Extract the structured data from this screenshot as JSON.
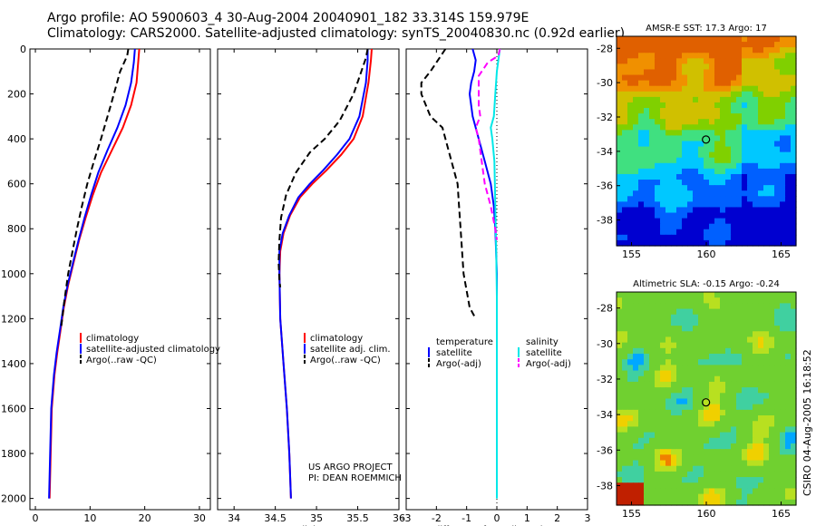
{
  "header": {
    "line1": "Argo profile: AO 5900603_4 30-Aug-2004 20040901_182 33.314S 159.979E",
    "line2": "Climatology: CARS2000. Satellite-adjusted climatology: synTS_20040830.nc (0.92d earlier)"
  },
  "side_label": "CSIRO 04-Aug-2005 16:18:52",
  "credit": {
    "line1": "US ARGO PROJECT",
    "line2": "PI: DEAN ROEMMICH"
  },
  "colors": {
    "climatology": "#ff0000",
    "satellite": "#0000ff",
    "argo": "#000000",
    "salinity_sat": "#00e8e8",
    "salinity_argo": "#ff00ff"
  },
  "chart_data": [
    {
      "type": "line",
      "xlabel": "temperature",
      "ylabel": "",
      "xlim": [
        -1,
        32
      ],
      "ylim": [
        2050,
        0
      ],
      "xticks": [
        0,
        10,
        20,
        30
      ],
      "yticks": [
        0,
        200,
        400,
        600,
        800,
        1000,
        1200,
        1400,
        1600,
        1800,
        2000
      ],
      "legend": {
        "placement": "lower-right",
        "entries": [
          "climatology",
          "satellite-adjusted climatology",
          "Argo(..raw -QC)"
        ]
      },
      "series": [
        {
          "name": "climatology",
          "color": "#ff0000",
          "dash": "solid",
          "x": [
            19.0,
            18.8,
            18.5,
            17.5,
            16.0,
            14.0,
            12.0,
            10.5,
            9.2,
            8.0,
            7.0,
            6.0,
            5.2,
            4.6,
            4.0,
            3.5,
            3.0,
            2.8,
            2.6
          ],
          "y": [
            0,
            60,
            150,
            250,
            350,
            450,
            550,
            650,
            750,
            850,
            950,
            1050,
            1150,
            1250,
            1350,
            1450,
            1600,
            1800,
            2000
          ]
        },
        {
          "name": "satellite-adjusted climatology",
          "color": "#0000ff",
          "dash": "solid",
          "x": [
            18.2,
            18.0,
            17.5,
            16.5,
            15.0,
            13.2,
            11.5,
            10.2,
            9.0,
            7.9,
            6.9,
            5.9,
            5.1,
            4.5,
            3.9,
            3.4,
            2.9,
            2.7,
            2.5
          ],
          "y": [
            0,
            60,
            150,
            250,
            350,
            450,
            550,
            650,
            750,
            850,
            950,
            1050,
            1150,
            1250,
            1350,
            1450,
            1600,
            1800,
            2000
          ]
        },
        {
          "name": "Argo(..raw -QC)",
          "color": "#000000",
          "dash": "dashed",
          "x": [
            17.0,
            16.8,
            15.5,
            13.8,
            12.0,
            10.7,
            9.5,
            8.5,
            7.6,
            6.8,
            6.0,
            5.3,
            4.7
          ],
          "y": [
            0,
            30,
            100,
            250,
            400,
            500,
            600,
            700,
            800,
            900,
            1000,
            1120,
            1240
          ]
        }
      ]
    },
    {
      "type": "line",
      "xlabel": "salinity",
      "ylabel": "",
      "xlim": [
        33.8,
        36.0
      ],
      "ylim": [
        2050,
        0
      ],
      "xticks": [
        34,
        34.5,
        35,
        35.5,
        36
      ],
      "legend": {
        "placement": "lower-right",
        "entries": [
          "climatology",
          "satellite adj. clim.",
          "Argo(..raw -QC)"
        ]
      },
      "series": [
        {
          "name": "climatology",
          "color": "#ff0000",
          "dash": "solid",
          "x": [
            35.67,
            35.66,
            35.63,
            35.56,
            35.45,
            35.3,
            35.12,
            34.95,
            34.8,
            34.68,
            34.6,
            34.56,
            34.55,
            34.56,
            34.6,
            34.64,
            34.67,
            34.69
          ],
          "y": [
            0,
            50,
            150,
            300,
            400,
            470,
            540,
            600,
            660,
            740,
            820,
            900,
            1000,
            1200,
            1400,
            1600,
            1800,
            2000
          ]
        },
        {
          "name": "satellite adj. clim.",
          "color": "#0000ff",
          "dash": "solid",
          "x": [
            35.62,
            35.62,
            35.6,
            35.52,
            35.4,
            35.25,
            35.08,
            34.92,
            34.78,
            34.67,
            34.59,
            34.55,
            34.55,
            34.56,
            34.6,
            34.64,
            34.67,
            34.69
          ],
          "y": [
            0,
            50,
            150,
            300,
            400,
            470,
            540,
            600,
            660,
            740,
            820,
            900,
            1000,
            1200,
            1400,
            1600,
            1800,
            2000
          ]
        },
        {
          "name": "Argo(..raw -QC)",
          "color": "#000000",
          "dash": "dashed",
          "x": [
            35.62,
            35.6,
            35.45,
            35.28,
            35.1,
            34.92,
            34.75,
            34.63,
            34.57,
            34.55,
            34.54,
            34.55,
            34.56
          ],
          "y": [
            0,
            40,
            200,
            320,
            400,
            460,
            550,
            650,
            750,
            850,
            950,
            1030,
            1060
          ]
        }
      ]
    },
    {
      "type": "line",
      "xlabel": "difference from climatology",
      "ylabel": "",
      "xlim": [
        -3,
        3
      ],
      "ylim": [
        2050,
        0
      ],
      "xticks": [
        -3,
        -2,
        -1,
        0,
        1,
        2,
        3
      ],
      "legend": {
        "placement": "lower-center",
        "groups": [
          {
            "title": "temperature",
            "entries": [
              "satellite",
              "Argo(-adj)"
            ]
          },
          {
            "title": "salinity",
            "entries": [
              "satellite",
              "Argo(-adj)"
            ]
          }
        ]
      },
      "series": [
        {
          "name": "satellite",
          "group": "temperature",
          "color": "#0000ff",
          "dash": "solid",
          "x": [
            -0.8,
            -0.7,
            -0.75,
            -0.85,
            -0.9,
            -0.8,
            -0.6,
            -0.4,
            -0.2,
            -0.1,
            -0.05,
            0.0,
            0.0,
            0.0
          ],
          "y": [
            0,
            50,
            100,
            150,
            200,
            300,
            400,
            500,
            600,
            700,
            800,
            1000,
            1500,
            1850
          ]
        },
        {
          "name": "Argo(-adj)",
          "group": "temperature",
          "color": "#000000",
          "dash": "dashed",
          "x": [
            -1.7,
            -2.2,
            -2.5,
            -2.5,
            -2.2,
            -1.8,
            -1.7,
            -1.5,
            -1.3,
            -1.25,
            -1.2,
            -1.1,
            -0.9,
            -0.7
          ],
          "y": [
            0,
            100,
            150,
            200,
            300,
            350,
            400,
            500,
            600,
            700,
            800,
            1000,
            1150,
            1200
          ]
        },
        {
          "name": "satellite",
          "group": "salinity",
          "color": "#00e8e8",
          "dash": "solid",
          "x": [
            0.1,
            0.0,
            -0.05,
            -0.1,
            -0.2,
            -0.15,
            -0.08,
            -0.05,
            -0.02,
            0.0,
            0.0,
            0.0,
            0.0
          ],
          "y": [
            0,
            100,
            200,
            300,
            350,
            400,
            500,
            700,
            900,
            1100,
            1300,
            1700,
            2000
          ]
        },
        {
          "name": "Argo(-adj)",
          "group": "salinity",
          "color": "#ff00ff",
          "dash": "dashed",
          "x": [
            0.1,
            0.05,
            -0.3,
            -0.6,
            -0.6,
            -0.55,
            -0.7,
            -0.6,
            -0.5,
            -0.4,
            -0.2,
            -0.05,
            0.0
          ],
          "y": [
            0,
            30,
            60,
            120,
            250,
            300,
            350,
            400,
            500,
            600,
            700,
            800,
            850
          ]
        }
      ]
    },
    {
      "type": "heatmap",
      "title": "AMSR-E SST: 17.3 Argo: 17",
      "xlim": [
        154,
        166
      ],
      "ylim": [
        -39.5,
        -27.3
      ],
      "xticks": [
        155,
        160,
        165
      ],
      "yticks": [
        -28,
        -30,
        -32,
        -34,
        -36,
        -38
      ],
      "marker": {
        "lon": 159.979,
        "lat": -33.314
      }
    },
    {
      "type": "heatmap",
      "title": "Altimetric SLA: -0.15 Argo: -0.24",
      "xlim": [
        154,
        166
      ],
      "ylim": [
        -39.1,
        -27.1
      ],
      "xticks": [
        155,
        160,
        165
      ],
      "yticks": [
        -28,
        -30,
        -32,
        -34,
        -36,
        -38
      ],
      "marker": {
        "lon": 159.979,
        "lat": -33.314
      }
    }
  ]
}
